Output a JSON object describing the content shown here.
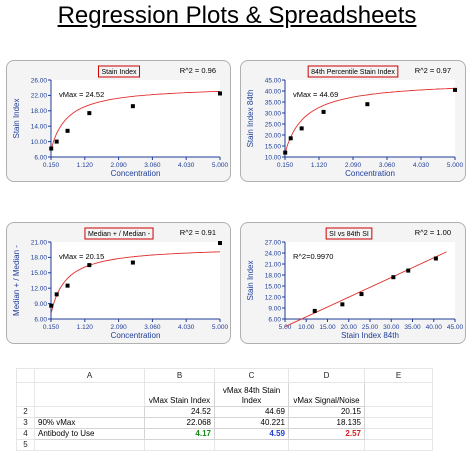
{
  "title": "Regression Plots & Spreadsheets",
  "colors": {
    "axis": "#1f3d99",
    "fit_line": "#e0302e",
    "point": "#000000",
    "title_box": "#cc0000"
  },
  "chart_data": [
    {
      "type": "scatter",
      "title": "Stain Index",
      "r2_label": "R^2 = 0.96",
      "annotation": "vMax = 24.52",
      "xlabel": "Concentration",
      "ylabel": "Stain Index",
      "xticks": [
        "0.150",
        "1.120",
        "2.090",
        "3.060",
        "4.030",
        "5.000"
      ],
      "yticks": [
        "6.00",
        "10.00",
        "14.00",
        "18.00",
        "22.00",
        "26.00"
      ],
      "xlim": [
        0.15,
        5.0
      ],
      "ylim": [
        6.0,
        26.0
      ],
      "points": [
        [
          0.156,
          8.2
        ],
        [
          0.313,
          10.0
        ],
        [
          0.625,
          12.8
        ],
        [
          1.25,
          17.4
        ],
        [
          2.5,
          19.2
        ],
        [
          5.0,
          22.5
        ]
      ],
      "fit": {
        "model": "saturation",
        "vmax": 24.52,
        "k": 0.32
      }
    },
    {
      "type": "scatter",
      "title": "84th Percentile Stain Index",
      "r2_label": "R^2 = 0.97",
      "annotation": "vMax = 44.69",
      "xlabel": "Concentration",
      "ylabel": "Stain Index 84th",
      "xticks": [
        "0.150",
        "1.120",
        "2.090",
        "3.060",
        "4.030",
        "5.000"
      ],
      "yticks": [
        "10.00",
        "15.00",
        "20.00",
        "25.00",
        "30.00",
        "35.00",
        "40.00",
        "45.00"
      ],
      "xlim": [
        0.15,
        5.0
      ],
      "ylim": [
        10.0,
        45.0
      ],
      "points": [
        [
          0.156,
          12.0
        ],
        [
          0.313,
          18.5
        ],
        [
          0.625,
          23.0
        ],
        [
          1.25,
          30.5
        ],
        [
          2.5,
          34.0
        ],
        [
          5.0,
          40.5
        ]
      ],
      "fit": {
        "model": "saturation",
        "vmax": 44.69,
        "k": 0.42
      }
    },
    {
      "type": "scatter",
      "title": "Median + / Median -",
      "r2_label": "R^2 = 0.91",
      "annotation": "vMax = 20.15",
      "xlabel": "Concentration",
      "ylabel": "Median + / Median -",
      "xticks": [
        "0.150",
        "1.120",
        "2.090",
        "3.060",
        "4.030",
        "5.000"
      ],
      "yticks": [
        "6.00",
        "9.00",
        "12.00",
        "15.00",
        "18.00",
        "21.00"
      ],
      "xlim": [
        0.15,
        5.0
      ],
      "ylim": [
        6.0,
        21.0
      ],
      "points": [
        [
          0.156,
          8.6
        ],
        [
          0.313,
          10.8
        ],
        [
          0.625,
          12.5
        ],
        [
          1.25,
          16.5
        ],
        [
          2.5,
          17.0
        ],
        [
          5.0,
          20.8
        ]
      ],
      "fit": {
        "model": "saturation",
        "vmax": 20.15,
        "k": 0.28
      }
    },
    {
      "type": "scatter",
      "title": "SI vs 84th SI",
      "r2_label": "R^2 = 1.00",
      "annotation": "R^2=0.9970",
      "xlabel": "Stain Index 84th",
      "ylabel": "Stain Index",
      "xticks": [
        "5.00",
        "10.00",
        "15.00",
        "20.00",
        "25.00",
        "30.00",
        "35.00",
        "40.00",
        "45.00"
      ],
      "yticks": [
        "6.00",
        "9.00",
        "12.00",
        "15.00",
        "18.00",
        "21.00",
        "24.00",
        "27.00"
      ],
      "xlim": [
        5.0,
        45.0
      ],
      "ylim": [
        6.0,
        27.0
      ],
      "points": [
        [
          12.0,
          8.2
        ],
        [
          18.5,
          10.0
        ],
        [
          23.0,
          12.8
        ],
        [
          30.5,
          17.4
        ],
        [
          34.0,
          19.2
        ],
        [
          40.5,
          22.5
        ]
      ],
      "fit": {
        "model": "linear",
        "x0": 5.0,
        "y0": 3.9,
        "x1": 43.0,
        "y1": 24.3
      }
    }
  ],
  "spreadsheet": {
    "col_headers": [
      "",
      "A",
      "B",
      "C",
      "D",
      "E"
    ],
    "header_row": {
      "b": "vMax Stain Index",
      "c": "vMax 84th Stain Index",
      "d": "vMax Signal/Noise"
    },
    "rows": [
      {
        "num": "2",
        "a": "",
        "b": "24.52",
        "c": "44.69",
        "d": "20.15"
      },
      {
        "num": "3",
        "a": "90% vMax",
        "b": "22.068",
        "c": "40.221",
        "d": "18.135"
      },
      {
        "num": "4",
        "a": "Antibody to Use",
        "b": "4.17",
        "c": "4.59",
        "d": "2.57"
      }
    ],
    "empty_row_num": "5"
  }
}
